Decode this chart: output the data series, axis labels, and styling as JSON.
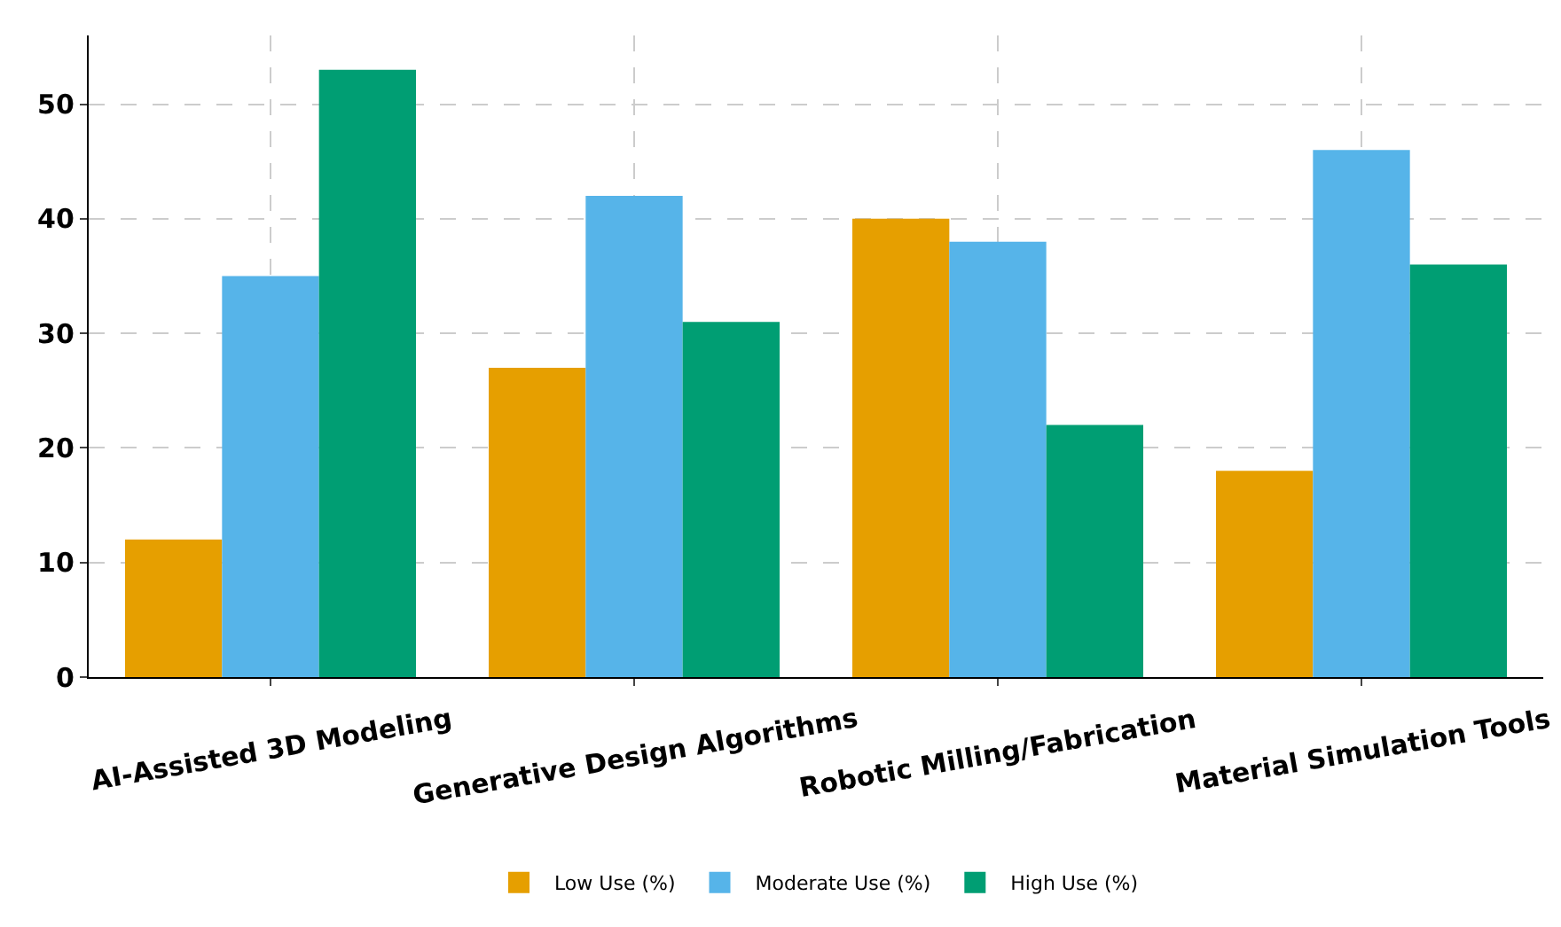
{
  "chart_data": {
    "type": "bar",
    "categories": [
      "AI-Assisted 3D Modeling",
      "Generative Design Algorithms",
      "Robotic Milling/Fabrication",
      "Material Simulation Tools"
    ],
    "series": [
      {
        "name": "Low Use (%)",
        "color": "#e69f00",
        "values": [
          12,
          27,
          40,
          18
        ]
      },
      {
        "name": "Moderate Use (%)",
        "color": "#56b4e9",
        "values": [
          35,
          42,
          38,
          46
        ]
      },
      {
        "name": "High Use (%)",
        "color": "#009e73",
        "values": [
          53,
          31,
          22,
          36
        ]
      }
    ],
    "ylim": [
      0,
      56
    ],
    "yticks": [
      0,
      10,
      20,
      30,
      40,
      50
    ],
    "grid": true,
    "legend": "bottom"
  }
}
